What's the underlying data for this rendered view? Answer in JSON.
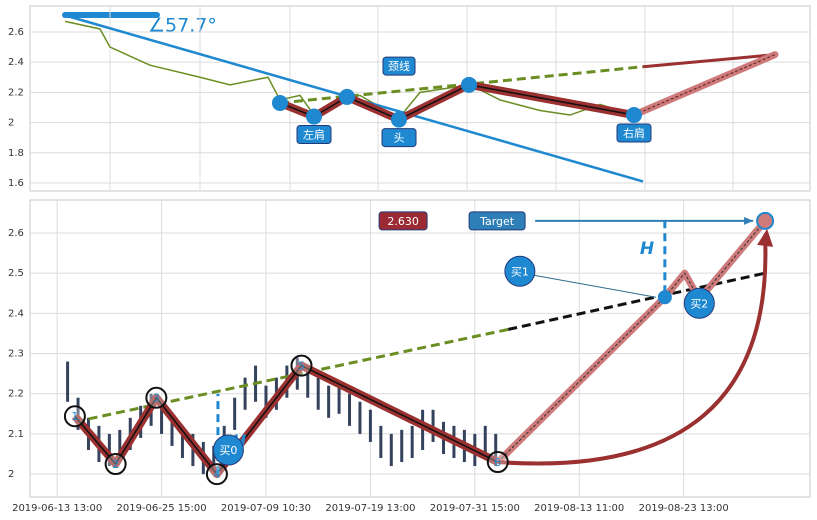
{
  "chart_data": [
    {
      "type": "line",
      "ylim": [
        1.547,
        2.772
      ],
      "yticks": [
        1.6,
        1.8,
        2.0,
        2.2,
        2.4,
        2.6
      ],
      "xlim": [
        0,
        780
      ],
      "xgrid": [
        80,
        170,
        260,
        348,
        437,
        526,
        615,
        703
      ],
      "angle_label": "∠57.7°",
      "color": "#6b8e23",
      "x": [
        35,
        70,
        80,
        120,
        170,
        200,
        238,
        250,
        270,
        284,
        310,
        330,
        369,
        390,
        410,
        440,
        470,
        510,
        540,
        570,
        604
      ],
      "values": [
        2.67,
        2.62,
        2.5,
        2.38,
        2.3,
        2.25,
        2.3,
        2.15,
        2.18,
        2.05,
        2.15,
        2.18,
        2.03,
        2.2,
        2.22,
        2.25,
        2.15,
        2.08,
        2.05,
        2.12,
        2.05
      ],
      "pattern": {
        "x": [
          250,
          284,
          317,
          369,
          439,
          604
        ],
        "values": [
          2.13,
          2.04,
          2.17,
          2.02,
          2.25,
          2.05
        ],
        "point_labels": [
          null,
          "左肩",
          null,
          "头",
          null,
          "右肩"
        ]
      },
      "neckline": {
        "x": [
          250,
          613
        ],
        "values": [
          2.13,
          2.37
        ],
        "label": "颈线"
      },
      "trendline": {
        "x": [
          35,
          613
        ],
        "values": [
          2.71,
          1.61
        ]
      },
      "projection": {
        "x": [
          604,
          745
        ],
        "values": [
          2.05,
          2.45
        ]
      },
      "neckline_projection": {
        "x": [
          613,
          745
        ],
        "values": [
          2.37,
          2.45
        ]
      }
    },
    {
      "type": "candlestick",
      "ylim": [
        1.943,
        2.682
      ],
      "yticks": [
        2.0,
        2.1,
        2.2,
        2.3,
        2.4,
        2.5,
        2.6
      ],
      "xlim": [
        -2.6,
        72.1
      ],
      "xticks": [
        {
          "value": 0,
          "label": "2019-06-13 13:00"
        },
        {
          "value": 10,
          "label": "2019-06-25 15:00"
        },
        {
          "value": 20,
          "label": "2019-07-09 10:30"
        },
        {
          "value": 30,
          "label": "2019-07-19 13:00"
        },
        {
          "value": 40,
          "label": "2019-07-31 15:00"
        },
        {
          "value": 50,
          "label": "2019-08-13 11:00"
        },
        {
          "value": 60,
          "label": "2019-08-23 13:00"
        }
      ],
      "color": "#34425c",
      "x": [
        1,
        2,
        3,
        4,
        5,
        6,
        7,
        8,
        9,
        10,
        11,
        12,
        13,
        14,
        15,
        16,
        17,
        18,
        19,
        20,
        21,
        22,
        23,
        24,
        25,
        26,
        27,
        28,
        29,
        30,
        31,
        32,
        33,
        34,
        35,
        36,
        37,
        38,
        39,
        40,
        41,
        42
      ],
      "high": [
        2.28,
        2.19,
        2.14,
        2.12,
        2.1,
        2.11,
        2.14,
        2.17,
        2.2,
        2.18,
        2.15,
        2.12,
        2.1,
        2.08,
        2.07,
        2.12,
        2.19,
        2.24,
        2.27,
        2.22,
        2.24,
        2.27,
        2.29,
        2.27,
        2.24,
        2.22,
        2.23,
        2.2,
        2.18,
        2.16,
        2.12,
        2.1,
        2.11,
        2.12,
        2.16,
        2.16,
        2.13,
        2.12,
        2.11,
        2.1,
        2.12,
        2.1
      ],
      "low": [
        2.18,
        2.11,
        2.06,
        2.03,
        2.02,
        2.03,
        2.06,
        2.09,
        2.12,
        2.1,
        2.07,
        2.04,
        2.02,
        2.0,
        2.0,
        2.04,
        2.11,
        2.16,
        2.18,
        2.14,
        2.16,
        2.19,
        2.21,
        2.19,
        2.16,
        2.14,
        2.15,
        2.12,
        2.1,
        2.08,
        2.04,
        2.02,
        2.03,
        2.04,
        2.06,
        2.08,
        2.05,
        2.04,
        2.03,
        2.02,
        2.04,
        2.02
      ],
      "pattern": {
        "x": [
          1.7,
          5.6,
          9.5,
          15.3,
          23.4,
          42.2
        ],
        "values": [
          2.144,
          2.025,
          2.19,
          2.0,
          2.27,
          2.03
        ],
        "point_labels": [
          "1",
          "2",
          "3",
          "4",
          "5",
          "6"
        ]
      },
      "neckline": {
        "x": [
          1.7,
          43.2
        ],
        "values": [
          2.13,
          2.36
        ]
      },
      "neckline_extension": {
        "x": [
          43.2,
          67.8
        ],
        "values": [
          2.36,
          2.5
        ]
      },
      "projection": {
        "x": [
          42.2,
          58.2,
          60.1,
          61.5,
          67.8
        ],
        "values": [
          2.03,
          2.44,
          2.5,
          2.435,
          2.63
        ]
      },
      "height_label": "H",
      "height_marks": [
        {
          "x": 15.4,
          "values": [
            2.0,
            2.2
          ]
        },
        {
          "x": 58.2,
          "values": [
            2.45,
            2.63
          ]
        }
      ],
      "buy_points": {
        "x": [
          16.4,
          58.2,
          61.5
        ],
        "values": [
          2.06,
          2.44,
          2.435
        ],
        "labels": [
          "买0",
          "买1",
          "买2"
        ]
      },
      "target": {
        "x": 67.8,
        "value": 2.63,
        "label": "Target",
        "value_label": "2.630"
      }
    }
  ]
}
